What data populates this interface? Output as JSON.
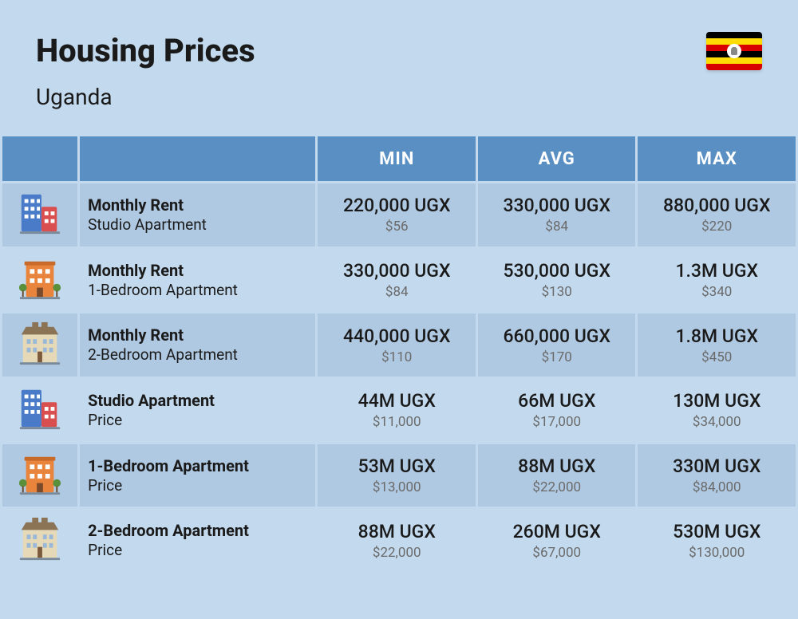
{
  "header": {
    "title": "Housing Prices",
    "subtitle": "Uganda"
  },
  "flag": {
    "stripes": [
      "#000000",
      "#fcdc04",
      "#d90000",
      "#000000",
      "#fcdc04",
      "#d90000"
    ]
  },
  "columns": [
    "MIN",
    "AVG",
    "MAX"
  ],
  "rows": [
    {
      "icon": "building-blue",
      "title": "Monthly Rent",
      "subtitle": "Studio Apartment",
      "min": {
        "main": "220,000 UGX",
        "sub": "$56"
      },
      "avg": {
        "main": "330,000 UGX",
        "sub": "$84"
      },
      "max": {
        "main": "880,000 UGX",
        "sub": "$220"
      }
    },
    {
      "icon": "building-orange",
      "title": "Monthly Rent",
      "subtitle": "1-Bedroom Apartment",
      "min": {
        "main": "330,000 UGX",
        "sub": "$84"
      },
      "avg": {
        "main": "530,000 UGX",
        "sub": "$130"
      },
      "max": {
        "main": "1.3M UGX",
        "sub": "$340"
      }
    },
    {
      "icon": "building-beige",
      "title": "Monthly Rent",
      "subtitle": "2-Bedroom Apartment",
      "min": {
        "main": "440,000 UGX",
        "sub": "$110"
      },
      "avg": {
        "main": "660,000 UGX",
        "sub": "$170"
      },
      "max": {
        "main": "1.8M UGX",
        "sub": "$450"
      }
    },
    {
      "icon": "building-blue",
      "title": "Studio Apartment",
      "subtitle": "Price",
      "min": {
        "main": "44M UGX",
        "sub": "$11,000"
      },
      "avg": {
        "main": "66M UGX",
        "sub": "$17,000"
      },
      "max": {
        "main": "130M UGX",
        "sub": "$34,000"
      }
    },
    {
      "icon": "building-orange",
      "title": "1-Bedroom Apartment",
      "subtitle": "Price",
      "min": {
        "main": "53M UGX",
        "sub": "$13,000"
      },
      "avg": {
        "main": "88M UGX",
        "sub": "$22,000"
      },
      "max": {
        "main": "330M UGX",
        "sub": "$84,000"
      }
    },
    {
      "icon": "building-beige",
      "title": "2-Bedroom Apartment",
      "subtitle": "Price",
      "min": {
        "main": "88M UGX",
        "sub": "$22,000"
      },
      "avg": {
        "main": "260M UGX",
        "sub": "$67,000"
      },
      "max": {
        "main": "530M UGX",
        "sub": "$130,000"
      }
    }
  ],
  "icons": {
    "building-blue": {
      "main": "#4a7bc8",
      "accent": "#d94f4f"
    },
    "building-orange": {
      "main": "#e8843c",
      "accent": "#5a8f3c"
    },
    "building-beige": {
      "main": "#e6d9b8",
      "accent": "#8b7355"
    }
  },
  "colors": {
    "page_bg": "#c3daee",
    "header_bg": "#5a8fc4",
    "row_odd": "#b0c9e2",
    "row_even": "#c3daee",
    "text_main": "#1a1a1a",
    "text_sub": "#6a6a6a"
  }
}
